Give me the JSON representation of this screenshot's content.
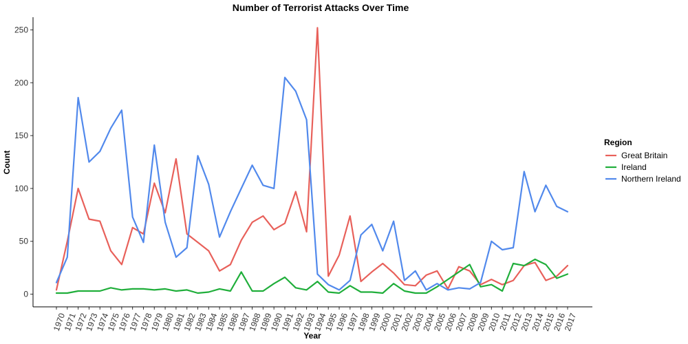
{
  "chart_data": {
    "type": "line",
    "title": "Number of Terrorist Attacks Over Time",
    "xlabel": "Year",
    "ylabel": "Count",
    "x": [
      "1970",
      "1971",
      "1972",
      "1973",
      "1974",
      "1975",
      "1976",
      "1977",
      "1978",
      "1979",
      "1980",
      "1981",
      "1982",
      "1983",
      "1984",
      "1985",
      "1986",
      "1987",
      "1988",
      "1989",
      "1990",
      "1991",
      "1992",
      "1993",
      "1994",
      "1995",
      "1996",
      "1997",
      "1998",
      "1999",
      "2000",
      "2001",
      "2002",
      "2003",
      "2004",
      "2005",
      "2006",
      "2007",
      "2008",
      "2009",
      "2010",
      "2011",
      "2012",
      "2013",
      "2014",
      "2015",
      "2016",
      "2017"
    ],
    "ylim": [
      -12,
      262
    ],
    "yticks": [
      0,
      50,
      100,
      150,
      200,
      250
    ],
    "grid": false,
    "legend": {
      "title": "Region",
      "position": "right"
    },
    "series": [
      {
        "name": "Great Britain",
        "color": "#E8605A",
        "values": [
          4,
          50,
          100,
          71,
          69,
          41,
          28,
          63,
          57,
          105,
          77,
          128,
          57,
          49,
          41,
          22,
          28,
          51,
          68,
          74,
          61,
          67,
          97,
          59,
          252,
          17,
          37,
          74,
          12,
          21,
          29,
          20,
          9,
          8,
          18,
          22,
          5,
          26,
          22,
          9,
          14,
          9,
          13,
          27,
          30,
          13,
          17,
          27
        ]
      },
      {
        "name": "Ireland",
        "color": "#1FAE3A",
        "values": [
          1,
          1,
          3,
          3,
          3,
          6,
          4,
          5,
          5,
          4,
          5,
          3,
          4,
          1,
          2,
          5,
          3,
          21,
          3,
          3,
          10,
          16,
          6,
          4,
          12,
          2,
          1,
          8,
          2,
          2,
          1,
          10,
          3,
          1,
          1,
          7,
          14,
          21,
          28,
          7,
          9,
          3,
          29,
          27,
          33,
          28,
          15,
          19
        ]
      },
      {
        "name": "Northern Ireland",
        "color": "#5189EC",
        "values": [
          11,
          35,
          186,
          125,
          135,
          157,
          174,
          73,
          49,
          141,
          68,
          35,
          44,
          131,
          104,
          54,
          78,
          100,
          122,
          103,
          100,
          205,
          192,
          165,
          19,
          9,
          4,
          13,
          56,
          66,
          41,
          69,
          13,
          22,
          4,
          10,
          4,
          6,
          5,
          11,
          50,
          42,
          44,
          116,
          78,
          103,
          83,
          78
        ]
      }
    ]
  }
}
